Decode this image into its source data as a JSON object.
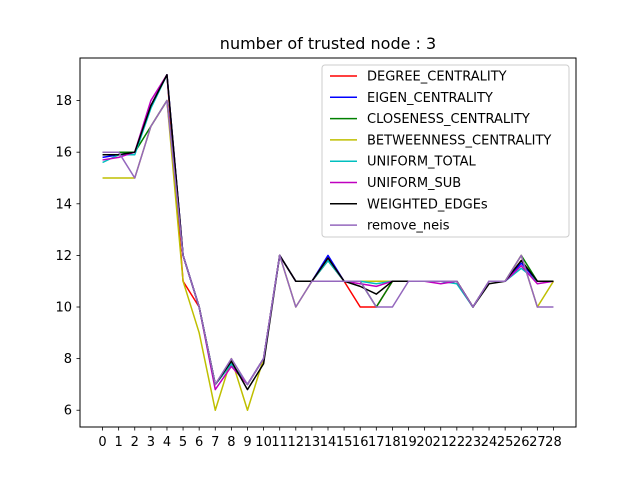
{
  "chart_data": {
    "type": "line",
    "title": "number of trusted node : 3",
    "xlabel": "",
    "ylabel": "",
    "x": [
      0,
      1,
      2,
      3,
      4,
      5,
      6,
      7,
      8,
      9,
      10,
      11,
      12,
      13,
      14,
      15,
      16,
      17,
      18,
      19,
      20,
      21,
      22,
      23,
      24,
      25,
      26,
      27,
      28
    ],
    "x_tick_labels": [
      "0",
      "1",
      "2",
      "3",
      "4",
      "5",
      "6",
      "7",
      "8",
      "9",
      "10",
      "11",
      "12",
      "13",
      "14",
      "15",
      "16",
      "17",
      "18",
      "19",
      "20",
      "21",
      "22",
      "23",
      "24",
      "25",
      "26",
      "27",
      "28"
    ],
    "y_ticks": [
      6,
      8,
      10,
      12,
      14,
      16,
      18
    ],
    "y_tick_labels": [
      "6",
      "8",
      "10",
      "12",
      "14",
      "16",
      "18"
    ],
    "xlim": [
      -1.4,
      29.4
    ],
    "ylim": [
      5.35,
      19.65
    ],
    "grid": false,
    "legend_position": "upper right",
    "series": [
      {
        "name": "DEGREE_CENTRALITY",
        "color": "#ff0000",
        "values": [
          16,
          16,
          16,
          17.8,
          19,
          11,
          10,
          7,
          7.8,
          7,
          8,
          12,
          11,
          11,
          11.8,
          11,
          10,
          10,
          11,
          11,
          11,
          11,
          11,
          10,
          11,
          11,
          11.8,
          11,
          11
        ]
      },
      {
        "name": "EIGEN_CENTRALITY",
        "color": "#0000ff",
        "values": [
          15.8,
          15.9,
          16,
          17.8,
          19,
          12,
          10,
          7,
          7.8,
          7,
          8,
          12,
          11,
          11,
          12,
          11,
          11,
          11,
          11,
          11,
          11,
          11,
          11,
          10,
          11,
          11,
          11.7,
          11,
          11
        ]
      },
      {
        "name": "CLOSENESS_CENTRALITY",
        "color": "#008000",
        "values": [
          16,
          16,
          16,
          17,
          18,
          12,
          10,
          7,
          7.8,
          7,
          8,
          12,
          11,
          11,
          11.8,
          11,
          11,
          10,
          11,
          11,
          11,
          11,
          11,
          10,
          11,
          11,
          12,
          11,
          11
        ]
      },
      {
        "name": "BETWEENNESS_CENTRALITY",
        "color": "#bfbf00",
        "values": [
          15,
          15,
          15,
          17,
          18,
          11,
          9,
          6,
          8,
          6,
          8,
          12,
          10,
          11,
          11,
          11,
          11,
          11,
          11,
          11,
          11,
          11,
          11,
          10,
          11,
          11,
          12,
          10,
          11
        ]
      },
      {
        "name": "UNIFORM_TOTAL",
        "color": "#00bfbf",
        "values": [
          15.6,
          15.9,
          15.9,
          17.7,
          19,
          12,
          10,
          7,
          7.8,
          7,
          8,
          12,
          11,
          11,
          11.8,
          11,
          11,
          10.9,
          11,
          11,
          11,
          11,
          10.9,
          10,
          11,
          11,
          11.5,
          11,
          11
        ]
      },
      {
        "name": "UNIFORM_SUB",
        "color": "#bf00bf",
        "values": [
          15.7,
          15.8,
          16,
          18,
          19,
          12,
          10,
          6.8,
          7.7,
          7,
          8,
          12,
          11,
          11,
          11.9,
          11,
          10.9,
          10.8,
          11,
          11,
          11,
          10.9,
          11,
          10,
          11,
          11,
          11.6,
          10.9,
          11
        ]
      },
      {
        "name": "WEIGHTED_EDGEs",
        "color": "#000000",
        "values": [
          15.9,
          15.9,
          16,
          17.8,
          19,
          12,
          10,
          7,
          7.9,
          6.8,
          7.8,
          12,
          11,
          11,
          11.9,
          11,
          10.8,
          10.5,
          11,
          11,
          11,
          11,
          11,
          10,
          10.9,
          11,
          11.8,
          11,
          11
        ]
      },
      {
        "name": "remove_neis",
        "color": "#9467bd",
        "values": [
          16,
          16,
          15,
          17,
          18,
          12,
          10,
          7,
          8,
          7,
          8,
          12,
          10,
          11,
          11,
          11,
          11,
          10,
          10,
          11,
          11,
          11,
          11,
          10,
          11,
          11,
          12,
          10,
          10
        ]
      }
    ]
  }
}
